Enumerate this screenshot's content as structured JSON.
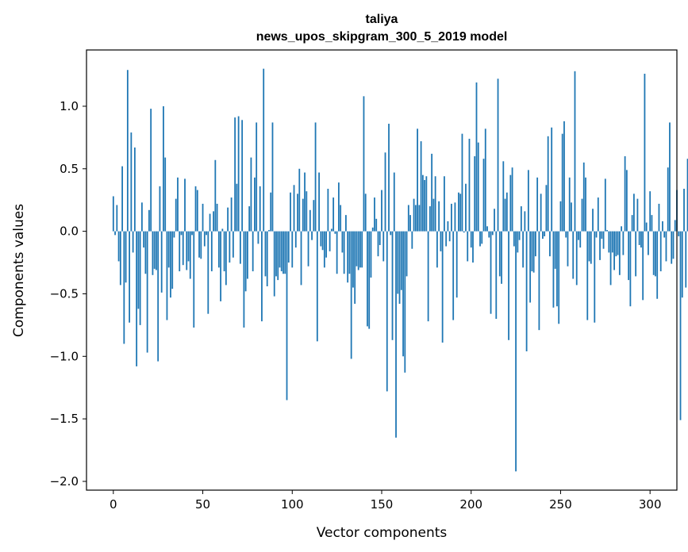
{
  "chart_data": {
    "type": "bar",
    "title_line1": "taliya",
    "title_line2": "news_upos_skipgram_300_5_2019 model",
    "xlabel": "Vector components",
    "ylabel": "Components values",
    "xlim": [
      -15,
      315
    ],
    "ylim": [
      -2.07,
      1.45
    ],
    "xticks": [
      0,
      50,
      100,
      150,
      200,
      250,
      300
    ],
    "xtick_labels": [
      "0",
      "50",
      "100",
      "150",
      "200",
      "250",
      "300"
    ],
    "yticks": [
      -2.0,
      -1.5,
      -1.0,
      -0.5,
      0.0,
      0.5,
      1.0
    ],
    "ytick_labels": [
      "−2.0",
      "−1.5",
      "−1.0",
      "−0.5",
      "0.0",
      "0.5",
      "1.0"
    ],
    "bar_color": "#1f77b4",
    "grid": false,
    "values": [
      0.28,
      -0.03,
      0.21,
      -0.24,
      -0.43,
      0.52,
      -0.9,
      -0.41,
      1.29,
      -0.73,
      0.79,
      -0.17,
      0.67,
      -1.08,
      -0.62,
      -0.75,
      0.23,
      -0.13,
      -0.34,
      -0.97,
      0.17,
      0.98,
      -0.35,
      -0.3,
      -0.31,
      -1.04,
      0.36,
      -0.49,
      1.0,
      0.59,
      -0.71,
      -0.29,
      -0.53,
      -0.46,
      -0.05,
      0.26,
      0.43,
      -0.32,
      -0.03,
      -0.27,
      0.42,
      -0.31,
      -0.24,
      -0.38,
      -0.03,
      -0.77,
      0.36,
      0.33,
      -0.21,
      -0.22,
      0.22,
      -0.12,
      -0.03,
      -0.66,
      0.14,
      -0.32,
      0.16,
      0.57,
      0.22,
      -0.29,
      -0.56,
      0.02,
      -0.32,
      -0.43,
      0.19,
      -0.25,
      0.27,
      -0.21,
      0.91,
      0.38,
      0.92,
      -0.26,
      0.89,
      -0.77,
      -0.48,
      -0.38,
      0.2,
      0.59,
      -0.32,
      0.43,
      0.87,
      -0.1,
      0.36,
      -0.72,
      1.3,
      -0.36,
      -0.44,
      0.01,
      0.31,
      0.87,
      -0.52,
      -0.36,
      -0.39,
      -0.29,
      -0.32,
      -0.34,
      -0.34,
      -1.35,
      -0.25,
      0.31,
      -0.29,
      0.37,
      -0.13,
      0.3,
      0.5,
      -0.43,
      0.26,
      0.47,
      0.32,
      -0.28,
      0.17,
      -0.07,
      0.25,
      0.87,
      -0.88,
      0.47,
      -0.12,
      -0.15,
      -0.29,
      -0.21,
      0.34,
      -0.16,
      0.02,
      0.27,
      -0.02,
      -0.34,
      0.39,
      0.21,
      -0.17,
      -0.34,
      0.13,
      -0.41,
      -0.34,
      -1.02,
      -0.45,
      -0.58,
      -0.28,
      -0.31,
      -0.29,
      -0.29,
      1.08,
      0.3,
      -0.76,
      -0.78,
      -0.37,
      0.03,
      0.27,
      0.1,
      -0.2,
      -0.11,
      0.33,
      -0.24,
      0.63,
      -1.28,
      0.86,
      -0.03,
      -0.87,
      0.47,
      -1.65,
      -0.5,
      -0.58,
      -0.47,
      -1.0,
      -1.13,
      -0.36,
      0.21,
      0.13,
      -0.14,
      0.26,
      0.21,
      0.82,
      0.21,
      0.72,
      0.45,
      0.41,
      0.44,
      -0.72,
      0.2,
      0.62,
      0.26,
      0.44,
      -0.29,
      0.24,
      -0.16,
      -0.89,
      0.44,
      -0.12,
      0.08,
      -0.08,
      0.22,
      -0.71,
      0.23,
      -0.53,
      0.31,
      0.3,
      0.78,
      -0.01,
      0.38,
      -0.24,
      0.74,
      -0.13,
      -0.25,
      0.6,
      1.19,
      0.71,
      -0.12,
      -0.1,
      0.58,
      0.82,
      0.04,
      -0.05,
      -0.66,
      -0.03,
      0.18,
      -0.7,
      1.22,
      -0.36,
      -0.42,
      0.56,
      0.26,
      0.31,
      -0.87,
      0.45,
      0.51,
      -0.12,
      -1.92,
      -0.17,
      -0.07,
      0.2,
      -0.29,
      0.16,
      -0.96,
      0.49,
      -0.57,
      -0.32,
      -0.33,
      -0.2,
      0.43,
      -0.79,
      0.3,
      -0.06,
      -0.04,
      0.37,
      0.76,
      -0.2,
      0.83,
      -0.61,
      -0.3,
      -0.6,
      -0.74,
      0.24,
      0.78,
      0.88,
      -0.05,
      -0.28,
      0.43,
      0.23,
      -0.38,
      1.28,
      -0.43,
      -0.07,
      -0.13,
      0.26,
      0.55,
      0.43,
      -0.71,
      -0.24,
      -0.26,
      0.18,
      -0.73,
      -0.05,
      0.27,
      -0.23,
      -0.06,
      -0.14,
      0.42,
      0.01,
      -0.17,
      -0.43,
      -0.17,
      -0.31,
      -0.2,
      -0.19,
      -0.35,
      0.04,
      -0.19,
      0.6,
      0.49,
      -0.39,
      -0.6,
      0.13,
      0.3,
      -0.36,
      0.26,
      -0.11,
      -0.13,
      -0.55,
      1.26,
      0.07,
      -0.19,
      0.32,
      0.13,
      -0.35,
      -0.36,
      -0.54,
      0.22,
      -0.32,
      0.08,
      -0.05,
      -0.24,
      0.51,
      0.87,
      -0.26,
      -0.22,
      0.09,
      0.33,
      -0.04,
      -1.51,
      -0.53,
      0.34,
      -0.45,
      0.58,
      0.01
    ]
  }
}
